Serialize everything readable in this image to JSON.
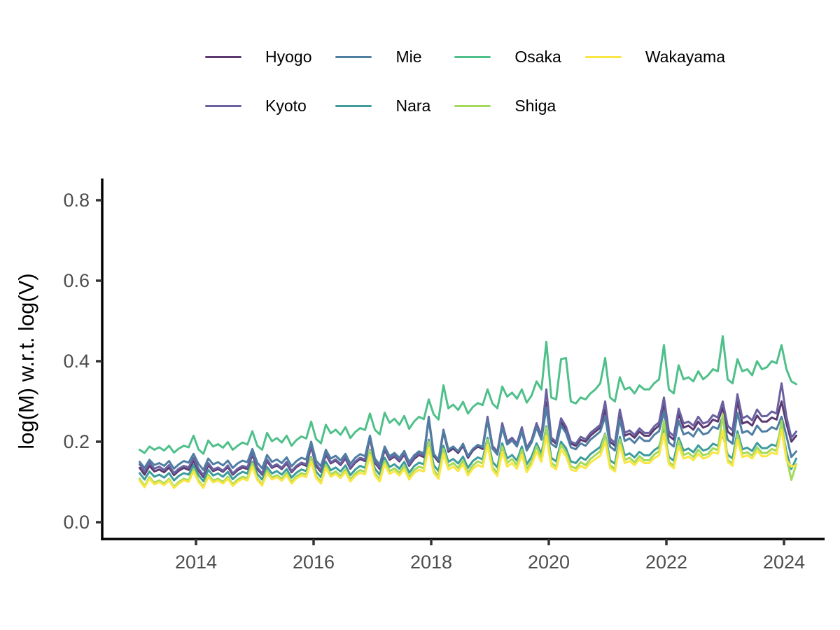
{
  "chart_data": {
    "type": "line",
    "title": "",
    "xlabel": "",
    "ylabel": "log(M) w.r.t. log(V)",
    "grid": "off",
    "legend_position": "top",
    "x_start_year": 2013,
    "frequency": "monthly",
    "xlim": [
      2012.9,
      2024.45
    ],
    "ylim": [
      -0.042,
      0.848
    ],
    "x_ticks": [
      {
        "v": 2014,
        "label": "2014"
      },
      {
        "v": 2016,
        "label": "2016"
      },
      {
        "v": 2018,
        "label": "2018"
      },
      {
        "v": 2020,
        "label": "2020"
      },
      {
        "v": 2022,
        "label": "2022"
      },
      {
        "v": 2024,
        "label": "2024"
      }
    ],
    "y_ticks": [
      {
        "v": 0.0,
        "label": "0.0"
      },
      {
        "v": 0.2,
        "label": "0.2"
      },
      {
        "v": 0.4,
        "label": "0.4"
      },
      {
        "v": 0.6,
        "label": "0.6"
      },
      {
        "v": 0.8,
        "label": "0.8"
      }
    ],
    "line_width": 3,
    "series": [
      {
        "name": "Hyogo",
        "color": "#5c3a71",
        "values": [
          0.135,
          0.118,
          0.14,
          0.126,
          0.131,
          0.124,
          0.136,
          0.117,
          0.128,
          0.135,
          0.13,
          0.152,
          0.128,
          0.112,
          0.142,
          0.127,
          0.132,
          0.125,
          0.137,
          0.118,
          0.129,
          0.136,
          0.132,
          0.168,
          0.132,
          0.118,
          0.152,
          0.135,
          0.141,
          0.132,
          0.146,
          0.124,
          0.137,
          0.145,
          0.14,
          0.188,
          0.14,
          0.125,
          0.168,
          0.146,
          0.153,
          0.142,
          0.158,
          0.133,
          0.148,
          0.157,
          0.152,
          0.21,
          0.148,
          0.132,
          0.18,
          0.155,
          0.163,
          0.151,
          0.168,
          0.14,
          0.157,
          0.167,
          0.162,
          0.258,
          0.165,
          0.15,
          0.225,
          0.175,
          0.183,
          0.172,
          0.19,
          0.16,
          0.178,
          0.188,
          0.182,
          0.255,
          0.185,
          0.17,
          0.24,
          0.195,
          0.205,
          0.19,
          0.23,
          0.18,
          0.2,
          0.24,
          0.21,
          0.298,
          0.205,
          0.195,
          0.25,
          0.23,
          0.195,
          0.19,
          0.205,
          0.2,
          0.215,
          0.225,
          0.235,
          0.28,
          0.2,
          0.19,
          0.27,
          0.215,
          0.22,
          0.21,
          0.225,
          0.215,
          0.215,
          0.23,
          0.24,
          0.295,
          0.215,
          0.205,
          0.27,
          0.235,
          0.24,
          0.23,
          0.25,
          0.235,
          0.24,
          0.255,
          0.25,
          0.285,
          0.225,
          0.215,
          0.3,
          0.245,
          0.25,
          0.24,
          0.265,
          0.25,
          0.25,
          0.26,
          0.255,
          0.3,
          0.245,
          0.2,
          0.215
        ]
      },
      {
        "name": "Kyoto",
        "color": "#6a62a0",
        "values": [
          0.144,
          0.126,
          0.148,
          0.133,
          0.138,
          0.13,
          0.142,
          0.122,
          0.133,
          0.14,
          0.136,
          0.16,
          0.133,
          0.117,
          0.147,
          0.131,
          0.136,
          0.128,
          0.141,
          0.121,
          0.133,
          0.14,
          0.136,
          0.172,
          0.136,
          0.121,
          0.156,
          0.138,
          0.144,
          0.135,
          0.15,
          0.127,
          0.14,
          0.148,
          0.144,
          0.192,
          0.144,
          0.128,
          0.172,
          0.149,
          0.156,
          0.145,
          0.162,
          0.136,
          0.151,
          0.16,
          0.156,
          0.214,
          0.152,
          0.136,
          0.184,
          0.158,
          0.166,
          0.154,
          0.172,
          0.143,
          0.161,
          0.17,
          0.166,
          0.262,
          0.17,
          0.154,
          0.23,
          0.18,
          0.188,
          0.176,
          0.195,
          0.164,
          0.182,
          0.192,
          0.187,
          0.262,
          0.19,
          0.175,
          0.246,
          0.2,
          0.21,
          0.195,
          0.236,
          0.185,
          0.205,
          0.246,
          0.215,
          0.33,
          0.21,
          0.2,
          0.258,
          0.238,
          0.2,
          0.195,
          0.212,
          0.206,
          0.222,
          0.232,
          0.242,
          0.3,
          0.208,
          0.197,
          0.28,
          0.222,
          0.228,
          0.217,
          0.233,
          0.222,
          0.222,
          0.238,
          0.248,
          0.31,
          0.225,
          0.214,
          0.282,
          0.245,
          0.25,
          0.24,
          0.262,
          0.245,
          0.25,
          0.266,
          0.26,
          0.3,
          0.24,
          0.228,
          0.318,
          0.258,
          0.264,
          0.253,
          0.28,
          0.263,
          0.264,
          0.275,
          0.27,
          0.345,
          0.262,
          0.21,
          0.225
        ]
      },
      {
        "name": "Mie",
        "color": "#4f7ea3",
        "values": [
          0.15,
          0.135,
          0.155,
          0.142,
          0.147,
          0.14,
          0.152,
          0.133,
          0.144,
          0.152,
          0.148,
          0.17,
          0.145,
          0.13,
          0.158,
          0.144,
          0.149,
          0.141,
          0.153,
          0.135,
          0.146,
          0.153,
          0.149,
          0.182,
          0.148,
          0.134,
          0.167,
          0.15,
          0.156,
          0.147,
          0.161,
          0.139,
          0.152,
          0.16,
          0.156,
          0.2,
          0.153,
          0.139,
          0.18,
          0.158,
          0.165,
          0.154,
          0.17,
          0.145,
          0.16,
          0.169,
          0.164,
          0.215,
          0.158,
          0.143,
          0.188,
          0.164,
          0.172,
          0.16,
          0.177,
          0.149,
          0.166,
          0.176,
          0.171,
          0.258,
          0.17,
          0.155,
          0.228,
          0.18,
          0.188,
          0.176,
          0.194,
          0.164,
          0.182,
          0.192,
          0.186,
          0.252,
          0.183,
          0.168,
          0.235,
          0.193,
          0.203,
          0.188,
          0.225,
          0.178,
          0.198,
          0.235,
          0.205,
          0.285,
          0.195,
          0.186,
          0.24,
          0.222,
          0.186,
          0.181,
          0.196,
          0.19,
          0.205,
          0.215,
          0.225,
          0.262,
          0.188,
          0.178,
          0.255,
          0.202,
          0.208,
          0.197,
          0.212,
          0.202,
          0.202,
          0.217,
          0.226,
          0.275,
          0.198,
          0.188,
          0.252,
          0.218,
          0.223,
          0.213,
          0.233,
          0.218,
          0.222,
          0.237,
          0.232,
          0.262,
          0.205,
          0.195,
          0.272,
          0.222,
          0.227,
          0.217,
          0.24,
          0.225,
          0.226,
          0.236,
          0.231,
          0.262,
          0.215,
          0.162,
          0.176
        ]
      },
      {
        "name": "Nara",
        "color": "#3f9c9c",
        "values": [
          0.122,
          0.106,
          0.126,
          0.113,
          0.118,
          0.111,
          0.122,
          0.104,
          0.115,
          0.122,
          0.118,
          0.142,
          0.117,
          0.102,
          0.13,
          0.116,
          0.121,
          0.113,
          0.125,
          0.107,
          0.118,
          0.125,
          0.121,
          0.15,
          0.12,
          0.106,
          0.137,
          0.121,
          0.127,
          0.118,
          0.132,
          0.111,
          0.123,
          0.131,
          0.127,
          0.162,
          0.126,
          0.112,
          0.15,
          0.129,
          0.136,
          0.126,
          0.141,
          0.117,
          0.131,
          0.14,
          0.135,
          0.18,
          0.133,
          0.118,
          0.16,
          0.137,
          0.144,
          0.133,
          0.15,
          0.123,
          0.139,
          0.148,
          0.144,
          0.205,
          0.142,
          0.127,
          0.19,
          0.15,
          0.157,
          0.146,
          0.163,
          0.135,
          0.152,
          0.161,
          0.156,
          0.21,
          0.15,
          0.136,
          0.196,
          0.158,
          0.167,
          0.153,
          0.188,
          0.144,
          0.163,
          0.196,
          0.17,
          0.238,
          0.16,
          0.151,
          0.2,
          0.184,
          0.151,
          0.147,
          0.161,
          0.155,
          0.169,
          0.178,
          0.187,
          0.22,
          0.154,
          0.145,
          0.212,
          0.166,
          0.171,
          0.161,
          0.175,
          0.166,
          0.166,
          0.179,
          0.187,
          0.23,
          0.162,
          0.153,
          0.21,
          0.178,
          0.183,
          0.174,
          0.191,
          0.178,
          0.182,
          0.195,
          0.19,
          0.218,
          0.168,
          0.158,
          0.226,
          0.181,
          0.185,
          0.177,
          0.197,
          0.184,
          0.184,
          0.193,
          0.189,
          0.24,
          0.175,
          0.132,
          0.158
        ]
      },
      {
        "name": "Osaka",
        "color": "#4fc08a",
        "values": [
          0.18,
          0.172,
          0.188,
          0.18,
          0.186,
          0.178,
          0.19,
          0.173,
          0.183,
          0.19,
          0.186,
          0.215,
          0.181,
          0.17,
          0.203,
          0.188,
          0.194,
          0.185,
          0.199,
          0.18,
          0.19,
          0.198,
          0.193,
          0.226,
          0.19,
          0.18,
          0.222,
          0.201,
          0.209,
          0.198,
          0.215,
          0.19,
          0.204,
          0.213,
          0.208,
          0.25,
          0.207,
          0.196,
          0.242,
          0.221,
          0.23,
          0.217,
          0.236,
          0.209,
          0.224,
          0.234,
          0.229,
          0.27,
          0.23,
          0.218,
          0.272,
          0.247,
          0.257,
          0.242,
          0.264,
          0.232,
          0.25,
          0.262,
          0.256,
          0.305,
          0.268,
          0.255,
          0.34,
          0.283,
          0.292,
          0.279,
          0.299,
          0.27,
          0.286,
          0.296,
          0.291,
          0.33,
          0.295,
          0.283,
          0.337,
          0.312,
          0.322,
          0.307,
          0.33,
          0.297,
          0.315,
          0.35,
          0.33,
          0.448,
          0.31,
          0.305,
          0.405,
          0.408,
          0.3,
          0.295,
          0.31,
          0.305,
          0.32,
          0.33,
          0.345,
          0.408,
          0.31,
          0.3,
          0.36,
          0.33,
          0.335,
          0.32,
          0.34,
          0.33,
          0.33,
          0.345,
          0.355,
          0.44,
          0.33,
          0.32,
          0.39,
          0.355,
          0.36,
          0.35,
          0.375,
          0.355,
          0.365,
          0.38,
          0.375,
          0.462,
          0.355,
          0.345,
          0.405,
          0.375,
          0.38,
          0.365,
          0.4,
          0.38,
          0.385,
          0.4,
          0.395,
          0.44,
          0.38,
          0.35,
          0.343
        ]
      },
      {
        "name": "Shiga",
        "color": "#a3da5b",
        "values": [
          0.108,
          0.09,
          0.112,
          0.098,
          0.104,
          0.096,
          0.108,
          0.088,
          0.1,
          0.108,
          0.104,
          0.132,
          0.104,
          0.088,
          0.118,
          0.103,
          0.108,
          0.1,
          0.113,
          0.094,
          0.106,
          0.113,
          0.109,
          0.146,
          0.109,
          0.094,
          0.128,
          0.111,
          0.117,
          0.108,
          0.123,
          0.1,
          0.114,
          0.122,
          0.118,
          0.16,
          0.115,
          0.1,
          0.142,
          0.119,
          0.126,
          0.115,
          0.131,
          0.106,
          0.121,
          0.13,
          0.125,
          0.178,
          0.122,
          0.106,
          0.152,
          0.127,
          0.134,
          0.123,
          0.14,
          0.112,
          0.129,
          0.138,
          0.134,
          0.2,
          0.13,
          0.114,
          0.182,
          0.139,
          0.147,
          0.135,
          0.153,
          0.123,
          0.141,
          0.151,
          0.146,
          0.205,
          0.137,
          0.122,
          0.188,
          0.147,
          0.157,
          0.142,
          0.18,
          0.132,
          0.152,
          0.188,
          0.16,
          0.235,
          0.148,
          0.138,
          0.192,
          0.174,
          0.139,
          0.134,
          0.149,
          0.142,
          0.157,
          0.167,
          0.176,
          0.218,
          0.142,
          0.132,
          0.205,
          0.155,
          0.16,
          0.149,
          0.164,
          0.154,
          0.154,
          0.168,
          0.176,
          0.252,
          0.15,
          0.14,
          0.202,
          0.167,
          0.172,
          0.162,
          0.18,
          0.166,
          0.17,
          0.184,
          0.179,
          0.268,
          0.155,
          0.145,
          0.218,
          0.17,
          0.174,
          0.165,
          0.186,
          0.172,
          0.172,
          0.182,
          0.177,
          0.252,
          0.162,
          0.105,
          0.144
        ]
      },
      {
        "name": "Wakayama",
        "color": "#f9e644",
        "values": [
          0.103,
          0.087,
          0.108,
          0.094,
          0.1,
          0.092,
          0.104,
          0.085,
          0.096,
          0.104,
          0.1,
          0.126,
          0.1,
          0.085,
          0.113,
          0.099,
          0.104,
          0.096,
          0.108,
          0.09,
          0.101,
          0.108,
          0.104,
          0.138,
          0.105,
          0.091,
          0.122,
          0.106,
          0.112,
          0.103,
          0.117,
          0.096,
          0.109,
          0.116,
          0.112,
          0.15,
          0.11,
          0.096,
          0.135,
          0.113,
          0.12,
          0.11,
          0.125,
          0.101,
          0.115,
          0.123,
          0.119,
          0.166,
          0.116,
          0.101,
          0.144,
          0.12,
          0.127,
          0.116,
          0.132,
          0.106,
          0.122,
          0.13,
          0.126,
          0.185,
          0.123,
          0.108,
          0.17,
          0.131,
          0.138,
          0.127,
          0.144,
          0.116,
          0.133,
          0.142,
          0.137,
          0.192,
          0.13,
          0.115,
          0.175,
          0.138,
          0.147,
          0.133,
          0.168,
          0.124,
          0.143,
          0.175,
          0.15,
          0.215,
          0.14,
          0.131,
          0.18,
          0.164,
          0.131,
          0.127,
          0.14,
          0.134,
          0.148,
          0.157,
          0.165,
          0.2,
          0.135,
          0.126,
          0.192,
          0.147,
          0.152,
          0.142,
          0.156,
          0.147,
          0.147,
          0.159,
          0.166,
          0.22,
          0.144,
          0.134,
          0.188,
          0.158,
          0.163,
          0.154,
          0.17,
          0.158,
          0.162,
          0.174,
          0.17,
          0.228,
          0.15,
          0.14,
          0.204,
          0.162,
          0.166,
          0.158,
          0.177,
          0.164,
          0.164,
          0.173,
          0.169,
          0.23,
          0.155,
          0.138,
          0.141
        ]
      }
    ],
    "legend_columns": [
      [
        "Hyogo",
        "Kyoto"
      ],
      [
        "Mie",
        "Nara"
      ],
      [
        "Osaka",
        "Shiga"
      ],
      [
        "Wakayama"
      ]
    ],
    "axis_color": "#000000",
    "tick_color": "#333333",
    "tick_label_color": "#4d4d4d"
  }
}
